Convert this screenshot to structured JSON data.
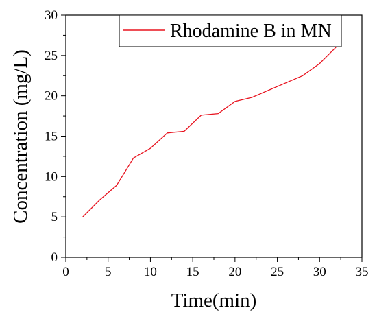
{
  "chart_data": {
    "type": "line",
    "xlabel": "Time(min)",
    "ylabel": "Concentration (mg/L)",
    "xlim": [
      0,
      35
    ],
    "ylim": [
      0,
      30
    ],
    "xticks": [
      "0",
      "5",
      "10",
      "15",
      "20",
      "25",
      "30",
      "35"
    ],
    "yticks": [
      "0",
      "5",
      "10",
      "15",
      "20",
      "25",
      "30"
    ],
    "grid": false,
    "legend_position": "top-right",
    "series": [
      {
        "name": "Rhodamine B in MN",
        "color": "#e8131f",
        "x": [
          2,
          4,
          6,
          8,
          10,
          12,
          14,
          16,
          18,
          20,
          22,
          24,
          26,
          28,
          30,
          32
        ],
        "y": [
          5.0,
          7.1,
          8.9,
          12.3,
          13.5,
          15.4,
          15.6,
          17.6,
          17.8,
          19.3,
          19.8,
          20.7,
          21.6,
          22.5,
          24.0,
          26.1
        ]
      }
    ]
  }
}
